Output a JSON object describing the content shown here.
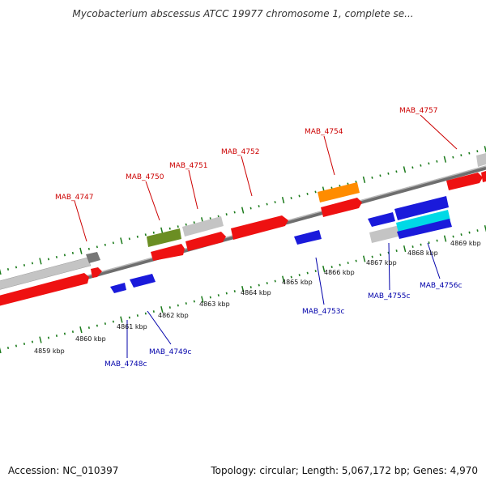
{
  "title": "Mycobacterium abscessus ATCC 19977 chromosome 1, complete se...",
  "footer": {
    "accession": "Accession: NC_010397",
    "summary": "Topology: circular; Length: 5,067,172 bp; Genes: 4,970"
  },
  "colors": {
    "forward_label": "#cc0000",
    "reverse_label": "#0000aa",
    "cds_red": "#ee1111",
    "cds_blue": "#1a1adb",
    "gene_gray": "#c4c4c4",
    "rrna_orange": "#ff8c00",
    "olive": "#6b8e23",
    "cyan": "#00d9e6",
    "tick_green": "#1a7a1a",
    "backbone": "#7a7a7a"
  },
  "kbp_labels": [
    "4859 kbp",
    "4860 kbp",
    "4861 kbp",
    "4862 kbp",
    "4863 kbp",
    "4864 kbp",
    "4865 kbp",
    "4866 kbp",
    "4867 kbp",
    "4868 kbp",
    "4869 kbp"
  ],
  "forward_genes": [
    "MAB_4747",
    "MAB_4750",
    "MAB_4751",
    "MAB_4752",
    "MAB_4754",
    "MAB_4757"
  ],
  "reverse_genes": [
    "MAB_4748c",
    "MAB_4749c",
    "MAB_4753c",
    "MAB_4755c",
    "MAB_4756c"
  ]
}
